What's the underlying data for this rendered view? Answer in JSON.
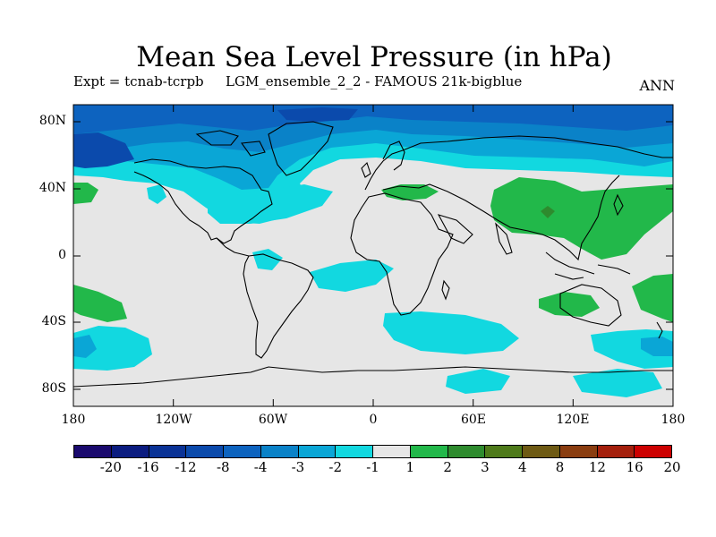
{
  "title": "Mean Sea Level Pressure (in hPa)",
  "subtitle": {
    "experiment": "Expt = tcnab-tcrpb",
    "ensemble": "LGM_ensemble_2_2 - FAMOUS 21k-bigblue",
    "season": "ANN"
  },
  "map_axes": {
    "lat_ticks": [
      "80N",
      "40N",
      "0",
      "40S",
      "80S"
    ],
    "lon_ticks": [
      "180",
      "120W",
      "60W",
      "0",
      "60E",
      "120E",
      "180"
    ],
    "lon_range": [
      -180,
      180
    ],
    "lat_range": [
      -90,
      90
    ]
  },
  "colorbar": {
    "labels": [
      "-20",
      "-16",
      "-12",
      "-8",
      "-4",
      "-3",
      "-2",
      "-1",
      "1",
      "2",
      "3",
      "4",
      "8",
      "12",
      "16",
      "20"
    ],
    "colors": [
      "#1a0a6e",
      "#0b1c80",
      "#0a3296",
      "#0b4aac",
      "#0d63bf",
      "#0a82c8",
      "#0aa6d6",
      "#12d8e0",
      "#e6e6e6",
      "#22b84a",
      "#2e8b2e",
      "#4e7a1a",
      "#6e5a14",
      "#8a3d10",
      "#a41f0c",
      "#cc0000"
    ]
  },
  "palette": {
    "ocean_background": "#e6e6e6",
    "coastline": "#000000"
  }
}
